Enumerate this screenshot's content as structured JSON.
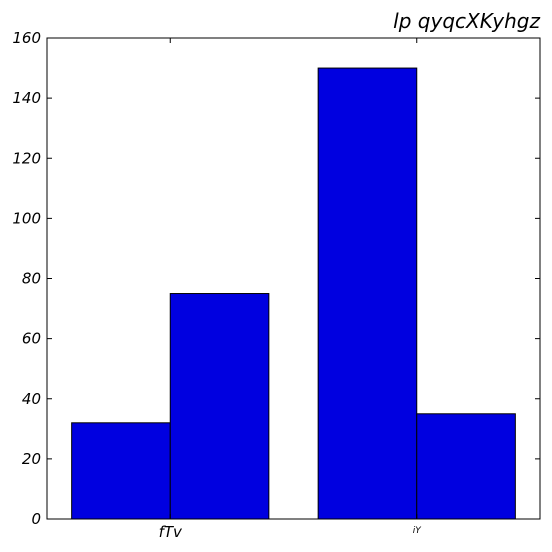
{
  "chart_data": {
    "type": "bar",
    "title": "lp qyqcXKyhgz",
    "xlabel": "",
    "ylabel": "",
    "categories": [
      "fTv",
      "iY"
    ],
    "series": [
      {
        "values": [
          32,
          150
        ]
      },
      {
        "values": [
          75,
          35
        ]
      }
    ],
    "ylim": [
      0,
      160
    ],
    "yticks": [
      0,
      20,
      40,
      60,
      80,
      100,
      120,
      140,
      160
    ],
    "grid": false,
    "colors": {
      "bar_fill": "#0000e0",
      "bar_edge": "#000000"
    }
  }
}
